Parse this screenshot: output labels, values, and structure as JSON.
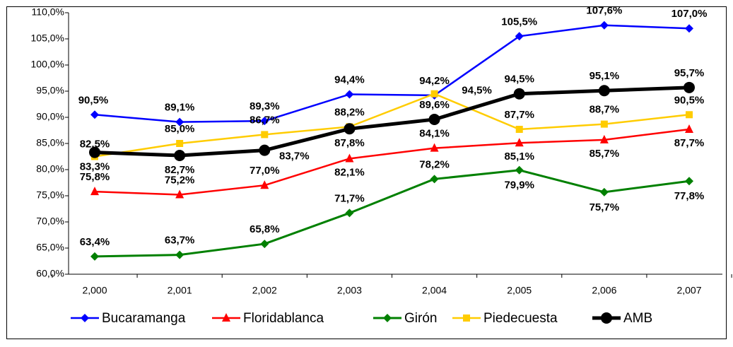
{
  "chart_data": {
    "type": "line",
    "categories": [
      "2,000",
      "2,001",
      "2,002",
      "2,003",
      "2,004",
      "2,005",
      "2,006",
      "2,007"
    ],
    "ylim": [
      60,
      110
    ],
    "yticks": [
      {
        "value": 60,
        "label": "60,0%"
      },
      {
        "value": 65,
        "label": "65,0%"
      },
      {
        "value": 70,
        "label": "70,0%"
      },
      {
        "value": 75,
        "label": "75,0%"
      },
      {
        "value": 80,
        "label": "80,0%"
      },
      {
        "value": 85,
        "label": "85,0%"
      },
      {
        "value": 90,
        "label": "90,0%"
      },
      {
        "value": 95,
        "label": "95,0%"
      },
      {
        "value": 100,
        "label": "100,0%"
      },
      {
        "value": 105,
        "label": "105,0%"
      },
      {
        "value": 110,
        "label": "110,0%"
      }
    ],
    "legend": "bottom",
    "series": [
      {
        "name": "Bucaramanga",
        "color": "#0000ff",
        "marker": "diamond",
        "values": [
          90.5,
          89.1,
          89.3,
          94.4,
          94.2,
          105.5,
          107.6,
          107.0
        ],
        "value_labels": [
          "90,5%",
          "89,1%",
          "89,3%",
          "94,4%",
          "94,2%",
          "105,5%",
          "107,6%",
          "107,0%"
        ]
      },
      {
        "name": "Floridablanca",
        "color": "#ff0000",
        "marker": "triangle",
        "values": [
          75.8,
          75.2,
          77.0,
          82.1,
          84.1,
          85.1,
          85.7,
          87.7
        ],
        "value_labels": [
          "75,8%",
          "75,2%",
          "77,0%",
          "82,1%",
          "84,1%",
          "85,1%",
          "85,7%",
          "87,7%"
        ]
      },
      {
        "name": "Girón",
        "color": "#008000",
        "marker": "diamond",
        "values": [
          63.4,
          63.7,
          65.8,
          71.7,
          78.2,
          79.9,
          75.7,
          77.8
        ],
        "value_labels": [
          "63,4%",
          "63,7%",
          "65,8%",
          "71,7%",
          "78,2%",
          "79,9%",
          "75,7%",
          "77,8%"
        ]
      },
      {
        "name": "Piedecuesta",
        "color": "#ffcc00",
        "marker": "square",
        "values": [
          82.5,
          85.0,
          86.7,
          88.2,
          94.5,
          87.7,
          88.7,
          90.5
        ],
        "value_labels": [
          "82,5%",
          "85,0%",
          "86,7%",
          "88,2%",
          "94,5%",
          "87,7%",
          "88,7%",
          "90,5%"
        ]
      },
      {
        "name": "AMB",
        "color": "#000000",
        "marker": "circle",
        "values": [
          83.3,
          82.7,
          83.7,
          87.8,
          89.6,
          94.5,
          95.1,
          95.7
        ],
        "value_labels": [
          "83,3%",
          "82,7%",
          "83,7%",
          "87,8%",
          "89,6%",
          "94,5%",
          "95,1%",
          "95,7%"
        ]
      }
    ]
  }
}
